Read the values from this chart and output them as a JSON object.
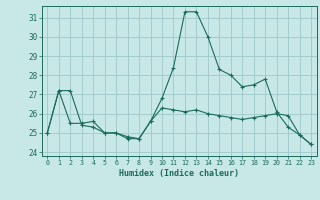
{
  "title": "",
  "xlabel": "Humidex (Indice chaleur)",
  "ylabel": "",
  "bg_color": "#c8e8e8",
  "grid_color": "#a0c8c8",
  "line_color": "#1a6b5a",
  "xlim": [
    -0.5,
    23.5
  ],
  "ylim": [
    23.8,
    31.6
  ],
  "yticks": [
    24,
    25,
    26,
    27,
    28,
    29,
    30,
    31
  ],
  "xticks": [
    0,
    1,
    2,
    3,
    4,
    5,
    6,
    7,
    8,
    9,
    10,
    11,
    12,
    13,
    14,
    15,
    16,
    17,
    18,
    19,
    20,
    21,
    22,
    23
  ],
  "series": [
    [
      25.0,
      27.2,
      27.2,
      25.4,
      25.3,
      25.0,
      25.0,
      24.8,
      24.7,
      25.6,
      26.3,
      26.2,
      26.1,
      26.2,
      26.0,
      25.9,
      25.8,
      25.7,
      25.8,
      25.9,
      26.0,
      25.9,
      24.9,
      24.4
    ],
    [
      25.0,
      27.2,
      25.5,
      25.5,
      25.6,
      25.0,
      25.0,
      24.7,
      24.7,
      25.6,
      26.8,
      28.4,
      31.3,
      31.3,
      30.0,
      28.3,
      28.0,
      27.4,
      27.5,
      27.8,
      26.1,
      25.3,
      24.9,
      24.4
    ]
  ]
}
